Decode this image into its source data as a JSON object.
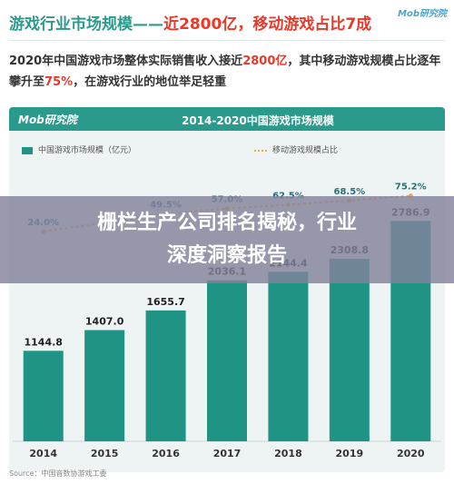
{
  "headline": {
    "part1": "游戏行业市场规模",
    "dash": "——",
    "part2": "近2800亿",
    "part3": "，移动游戏占比7成"
  },
  "top_logo": "Mob研究院",
  "summary": {
    "a": "2020年中国游戏市场整体实际销售收入接近",
    "b": "2800亿",
    "c": "，其中移动游戏规模占比逐年攀升至",
    "d": "75%",
    "e": "，在游戏行业的地位举足轻重"
  },
  "card": {
    "logo": "Mob研究院",
    "title": "2014-2020中国游戏市场规模"
  },
  "legend": {
    "bar": "中国游戏市场规模（亿元）",
    "line": "移动游戏规模占比"
  },
  "banner": {
    "line1": "栅栏生产公司排名揭秘，行业",
    "line2": "深度洞察报告"
  },
  "source": "Source：中国音数协游戏工委",
  "colors": {
    "bar": "#1f9384",
    "line": "#f2a54b",
    "header": "#2a9a8c",
    "highlight": "#e8392a"
  },
  "chart_data": {
    "type": "bar",
    "title": "2014-2020中国游戏市场规模",
    "categories": [
      "2014",
      "2015",
      "2016",
      "2017",
      "2018",
      "2019",
      "2020"
    ],
    "series": [
      {
        "name": "中国游戏市场规模（亿元）",
        "type": "bar",
        "values": [
          1144.8,
          1407.0,
          1655.7,
          2036.1,
          2144.4,
          2308.8,
          2786.9
        ]
      },
      {
        "name": "移动游戏规模占比",
        "type": "line",
        "values": [
          24.0,
          null,
          49.5,
          57.0,
          62.5,
          68.5,
          75.2
        ]
      }
    ],
    "value_labels": [
      "1144.8",
      "1407.0",
      "1655.7",
      "2036.1",
      "2144.4",
      "2308.8",
      "2786.9"
    ],
    "share_labels": [
      "24.0%",
      "",
      "49.5%",
      "57.0%",
      "62.5%",
      "68.5%",
      "75.2%"
    ],
    "ylim": [
      0,
      3400
    ],
    "legend_position": "top"
  }
}
